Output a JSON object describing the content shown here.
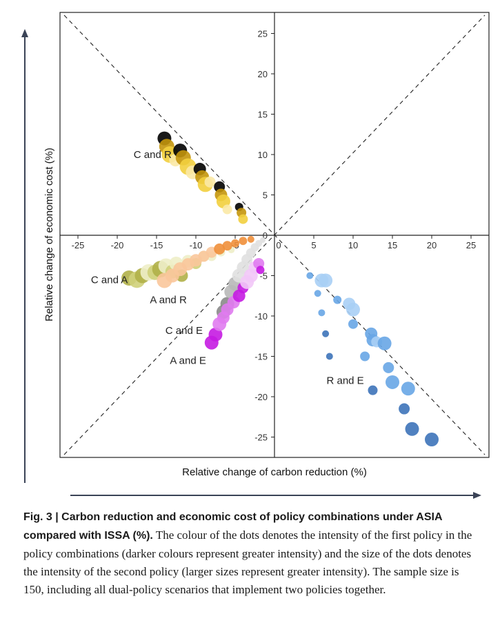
{
  "chart_data": {
    "type": "scatter",
    "xlabel": "Relative change of carbon reduction (%)",
    "ylabel": "Relative change of economic cost (%)",
    "xlim": [
      -27,
      27
    ],
    "ylim": [
      -27.5,
      27.5
    ],
    "x_ticks": [
      -25,
      -20,
      -15,
      -10,
      -5,
      0,
      5,
      10,
      15,
      20,
      25
    ],
    "y_ticks": [
      -25,
      -20,
      -15,
      -10,
      -5,
      5,
      10,
      15,
      20,
      25
    ],
    "y_zero_tick": "0",
    "x_zero_tick": "0",
    "grid": false,
    "reference_lines": [
      "y = x (dashed)",
      "y = -x (dashed)"
    ],
    "series": [
      {
        "name": "C and R",
        "colors": [
          "#fbe9a6",
          "#f2cf3e",
          "#c4960c"
        ],
        "label_at": [
          -15.5,
          10
        ],
        "points": [
          [
            -14,
            12,
            3,
            10
          ],
          [
            -13.7,
            11,
            2,
            11
          ],
          [
            -13.3,
            10,
            1,
            12
          ],
          [
            -12.6,
            9.3,
            0,
            9
          ],
          [
            -12,
            10.5,
            3,
            10
          ],
          [
            -11.6,
            9.6,
            2,
            11
          ],
          [
            -11,
            8.5,
            1,
            12
          ],
          [
            -10.4,
            7.8,
            0,
            10
          ],
          [
            -9.5,
            8.2,
            3,
            9
          ],
          [
            -9.2,
            7.2,
            2,
            10
          ],
          [
            -8.8,
            6.3,
            1,
            11
          ],
          [
            -8.2,
            6.6,
            0,
            8
          ],
          [
            -7,
            6,
            3,
            8
          ],
          [
            -6.8,
            5,
            2,
            9
          ],
          [
            -6.5,
            4.2,
            1,
            10
          ],
          [
            -6,
            3.2,
            0,
            7
          ],
          [
            -4.5,
            3.5,
            3,
            6
          ],
          [
            -4.2,
            2.8,
            2,
            7
          ],
          [
            -4,
            2,
            1,
            7
          ]
        ]
      },
      {
        "name": "C and A",
        "colors": [
          "#eeeec8",
          "#cfd07a",
          "#b0b048"
        ],
        "label_at": [
          -21,
          -5.5
        ],
        "points": [
          [
            -18.5,
            -5.3,
            2,
            11
          ],
          [
            -17.5,
            -5.5,
            1,
            12
          ],
          [
            -16.8,
            -5,
            2,
            11
          ],
          [
            -16,
            -4.6,
            0,
            12
          ],
          [
            -15.2,
            -4.6,
            1,
            11
          ],
          [
            -14.5,
            -4.2,
            2,
            12
          ],
          [
            -13.8,
            -3.8,
            0,
            11
          ],
          [
            -13,
            -4.5,
            1,
            10
          ],
          [
            -12.5,
            -3.5,
            0,
            10
          ],
          [
            -11.8,
            -5,
            2,
            9
          ],
          [
            -11,
            -3.2,
            0,
            9
          ],
          [
            -10,
            -3.5,
            1,
            8
          ],
          [
            -9,
            -2.6,
            0,
            8
          ],
          [
            -8,
            -2.6,
            0,
            7
          ],
          [
            -6.8,
            -2.1,
            0,
            6
          ],
          [
            -5.5,
            -1.8,
            0,
            5
          ]
        ]
      },
      {
        "name": "A and R",
        "colors": [
          "#f9c79b",
          "#ef8f3a",
          "#d86617"
        ],
        "label_at": [
          -13.5,
          -8
        ],
        "points": [
          [
            -14,
            -5.6,
            0,
            11
          ],
          [
            -13,
            -5,
            0,
            10
          ],
          [
            -12,
            -4.2,
            0,
            10
          ],
          [
            -11,
            -3.6,
            0,
            9
          ],
          [
            -10,
            -3.1,
            0,
            9
          ],
          [
            -9,
            -2.6,
            0,
            8
          ],
          [
            -8,
            -2.1,
            0,
            8
          ],
          [
            -7,
            -1.7,
            1,
            8
          ],
          [
            -6,
            -1.3,
            1,
            7
          ],
          [
            -5,
            -1,
            1,
            6
          ],
          [
            -4,
            -0.7,
            1,
            6
          ],
          [
            -3,
            -0.5,
            1,
            5
          ]
        ]
      },
      {
        "name": "C and E",
        "colors": [
          "#e0e0e0",
          "#b8b8b8",
          "#8a8a8a"
        ],
        "label_at": [
          -11.5,
          -11.8
        ],
        "points": [
          [
            -6.5,
            -9.5,
            2,
            10
          ],
          [
            -6,
            -8.5,
            2,
            10
          ],
          [
            -5.5,
            -7,
            1,
            10
          ],
          [
            -5,
            -6,
            1,
            10
          ],
          [
            -4.5,
            -5,
            0,
            10
          ],
          [
            -4,
            -4,
            0,
            9
          ],
          [
            -3.5,
            -3,
            0,
            8
          ],
          [
            -3,
            -2.2,
            0,
            7
          ],
          [
            -2.5,
            -1.5,
            0,
            6
          ],
          [
            -2,
            -1,
            0,
            5
          ],
          [
            -1.5,
            -0.6,
            0,
            4
          ]
        ]
      },
      {
        "name": "A and E",
        "colors": [
          "#f2c8f7",
          "#e07bf0",
          "#c51be2"
        ],
        "label_at": [
          -11,
          -15.5
        ],
        "points": [
          [
            -8,
            -13.3,
            2,
            10
          ],
          [
            -7.5,
            -12.3,
            2,
            10
          ],
          [
            -7,
            -11,
            1,
            10
          ],
          [
            -6.5,
            -10.2,
            1,
            9
          ],
          [
            -6,
            -9.2,
            1,
            9
          ],
          [
            -5.2,
            -8.3,
            1,
            9
          ],
          [
            -4.5,
            -7.5,
            2,
            9
          ],
          [
            -4,
            -6.5,
            2,
            8
          ],
          [
            -3.5,
            -5.8,
            0,
            10
          ],
          [
            -3,
            -5,
            0,
            10
          ],
          [
            -2.5,
            -4,
            0,
            9
          ],
          [
            -2,
            -3.5,
            1,
            8
          ],
          [
            -1.8,
            -4.3,
            2,
            6
          ]
        ]
      },
      {
        "name": "R and E",
        "colors": [
          "#a9cff5",
          "#68a6e6",
          "#3d73b9"
        ],
        "label_at": [
          9,
          -18
        ],
        "points": [
          [
            4.5,
            -5,
            1,
            5
          ],
          [
            5.5,
            -7.2,
            1,
            5
          ],
          [
            6,
            -9.6,
            1,
            5
          ],
          [
            6.5,
            -12.2,
            2,
            5
          ],
          [
            7,
            -15,
            2,
            5
          ],
          [
            6,
            -5.6,
            0,
            10
          ],
          [
            6.5,
            -5.6,
            0,
            10
          ],
          [
            8,
            -8,
            1,
            6
          ],
          [
            9.5,
            -8.5,
            0,
            9
          ],
          [
            10,
            -9.2,
            0,
            10
          ],
          [
            10,
            -11,
            1,
            7
          ],
          [
            11.5,
            -15,
            1,
            7
          ],
          [
            12.5,
            -19.2,
            2,
            7
          ],
          [
            12.3,
            -12.2,
            1,
            9
          ],
          [
            12.5,
            -13,
            1,
            9
          ],
          [
            13,
            -13.2,
            0,
            8
          ],
          [
            14,
            -13.4,
            1,
            10
          ],
          [
            14.5,
            -16.4,
            1,
            8
          ],
          [
            15,
            -18.2,
            1,
            10
          ],
          [
            16.5,
            -21.5,
            2,
            8
          ],
          [
            17,
            -19,
            1,
            10
          ],
          [
            17.5,
            -24,
            2,
            10
          ],
          [
            20,
            -25.3,
            2,
            10
          ]
        ]
      }
    ]
  },
  "caption": {
    "heading": "Fig. 3 | Carbon reduction and economic cost of policy combinations under ASIA compared with ISSA (%).",
    "body": "The colour of the dots denotes the intensity of the first policy in the policy combinations (darker colours represent greater intensity) and the size of the dots denotes the intensity of the second policy (larger sizes represent greater intensity). The sample size is 150, including all dual-policy scenarios that implement two policies together."
  }
}
